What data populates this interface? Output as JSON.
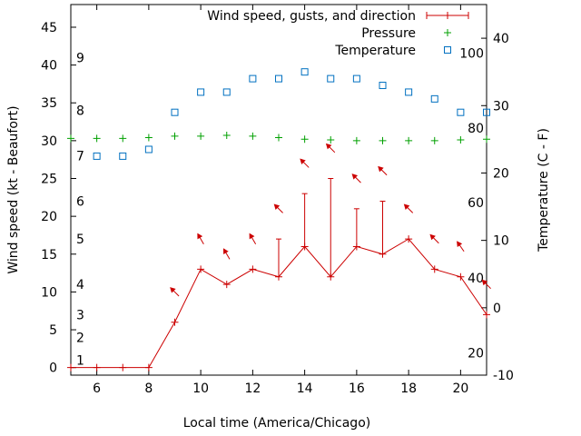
{
  "chart_data": {
    "type": "line",
    "title": "",
    "xlabel": "Local time (America/Chicago)",
    "ylabel": "Wind speed (kt - Beaufort)",
    "y2label": "Temperature (C - F)",
    "xlim": [
      5,
      21
    ],
    "ylim": [
      -1,
      48
    ],
    "y2lim": [
      -10,
      45
    ],
    "x_ticks": [
      "6",
      "8",
      "10",
      "12",
      "14",
      "16",
      "18",
      "20"
    ],
    "y_ticks": [
      "0",
      "5",
      "10",
      "15",
      "20",
      "25",
      "30",
      "35",
      "40",
      "45"
    ],
    "y2_ticks": [
      "-10",
      "0",
      "10",
      "20",
      "30",
      "40"
    ],
    "beaufort_labels": [
      {
        "label": "1",
        "kt": 1
      },
      {
        "label": "2",
        "kt": 4
      },
      {
        "label": "3",
        "kt": 7
      },
      {
        "label": "4",
        "kt": 11
      },
      {
        "label": "5",
        "kt": 17
      },
      {
        "label": "6",
        "kt": 22
      },
      {
        "label": "7",
        "kt": 28
      },
      {
        "label": "8",
        "kt": 34
      },
      {
        "label": "9",
        "kt": 41
      }
    ],
    "fahrenheit_labels": [
      {
        "label": "20",
        "c": -6.7
      },
      {
        "label": "40",
        "c": 4.4
      },
      {
        "label": "60",
        "c": 15.6
      },
      {
        "label": "80",
        "c": 26.7
      },
      {
        "label": "100",
        "c": 37.8
      }
    ],
    "legend": {
      "position": "top-right",
      "entries": [
        "Wind speed, gusts, and direction",
        "Pressure",
        "Temperature"
      ]
    },
    "colors": {
      "wind": "#cc0000",
      "pressure": "#00a000",
      "temperature": "#0070c0"
    },
    "series": [
      {
        "name": "Wind speed, gusts, and direction",
        "axis": "left",
        "x": [
          5,
          6,
          7,
          8,
          9,
          10,
          11,
          12,
          13,
          14,
          15,
          16,
          17,
          18,
          19,
          20,
          21
        ],
        "values": [
          0,
          0,
          0,
          0,
          6,
          13,
          11,
          13,
          12,
          16,
          12,
          16,
          15,
          17,
          13,
          12,
          7
        ],
        "gusts": [
          null,
          null,
          null,
          null,
          null,
          null,
          null,
          null,
          17,
          23,
          25,
          21,
          22,
          null,
          null,
          null,
          null
        ],
        "direction_x": [
          9,
          10,
          11,
          12,
          13,
          14,
          15,
          16,
          17,
          18,
          19,
          20,
          21
        ],
        "direction_y": [
          10,
          17,
          15,
          17,
          21,
          27,
          29,
          25,
          26,
          21,
          17,
          16,
          11
        ],
        "direction_deg": [
          135,
          150,
          150,
          150,
          135,
          135,
          135,
          135,
          135,
          135,
          135,
          145,
          135
        ]
      },
      {
        "name": "Pressure",
        "axis": "left",
        "x": [
          5,
          6,
          7,
          8,
          9,
          10,
          11,
          12,
          13,
          14,
          15,
          16,
          17,
          18,
          19,
          20,
          21
        ],
        "values": [
          30.3,
          30.3,
          30.3,
          30.4,
          30.6,
          30.6,
          30.7,
          30.6,
          30.4,
          30.2,
          30.1,
          30.0,
          30.0,
          30.0,
          30.0,
          30.1,
          30.2
        ]
      },
      {
        "name": "Temperature",
        "axis": "right",
        "x": [
          6,
          7,
          8,
          9,
          10,
          11,
          12,
          13,
          14,
          15,
          16,
          17,
          18,
          19,
          20,
          21
        ],
        "values": [
          22.5,
          22.5,
          23.5,
          29,
          32,
          32,
          34,
          34,
          35,
          34,
          34,
          33,
          32,
          31,
          29,
          29
        ]
      }
    ]
  }
}
